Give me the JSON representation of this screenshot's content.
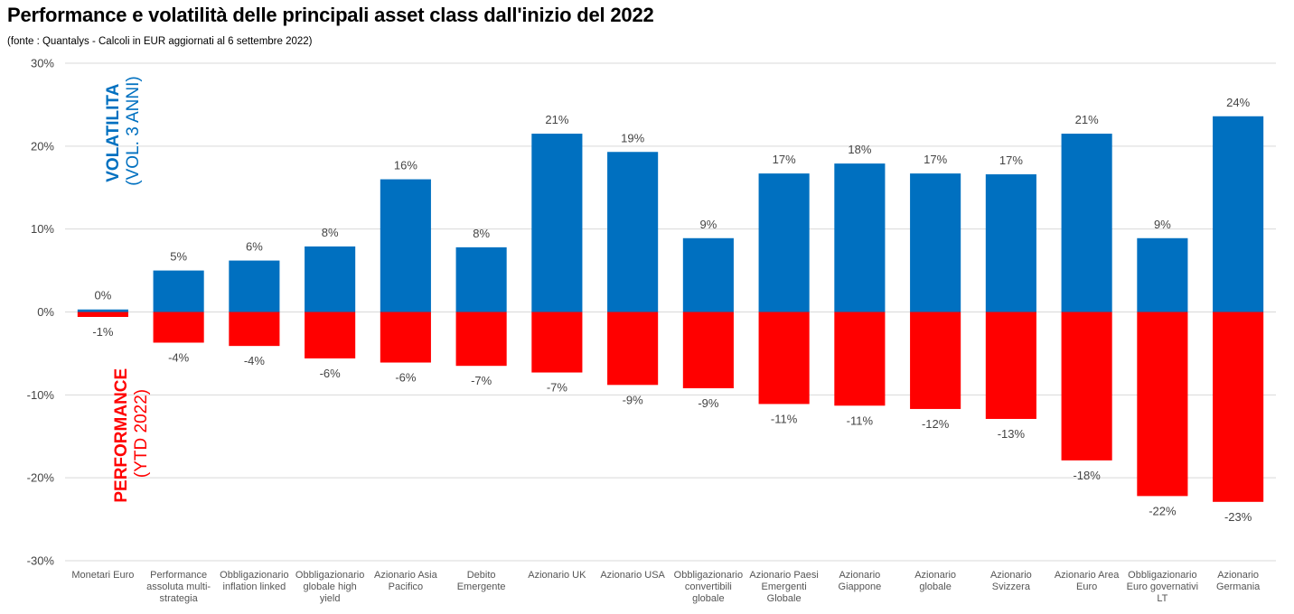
{
  "header": {
    "title": "Performance e volatilità delle principali asset class dall'inizio del 2022",
    "subtitle": "(fonte : Quantalys - Calcoli in EUR aggiornati al 6 settembre 2022)"
  },
  "legend": {
    "volatility_strong": "VOLATILITA",
    "volatility_light": "(VOL. 3 ANNI)",
    "performance_strong": "PERFORMANCE",
    "performance_light": "(YTD 2022)"
  },
  "colors": {
    "volatility": "#0070C0",
    "performance": "#FF0000",
    "grid": "#D9D9D9"
  },
  "chart_data": {
    "type": "bar",
    "categories": [
      [
        "Monetari Euro"
      ],
      [
        "Performance",
        "assoluta multi-",
        "strategia"
      ],
      [
        "Obbligazionario",
        "inflation linked"
      ],
      [
        "Obbligazionario",
        "globale high",
        "yield"
      ],
      [
        "Azionario Asia",
        "Pacifico"
      ],
      [
        "Debito",
        "Emergente"
      ],
      [
        "Azionario UK"
      ],
      [
        "Azionario USA"
      ],
      [
        "Obbligazionario",
        "convertibili",
        "globale"
      ],
      [
        "Azionario Paesi",
        "Emergenti",
        "Globale"
      ],
      [
        "Azionario",
        "Giappone"
      ],
      [
        "Azionario",
        "globale"
      ],
      [
        "Azionario",
        "Svizzera"
      ],
      [
        "Azionario Area",
        "Euro"
      ],
      [
        "Obbligazionario",
        "Euro governativi",
        "LT"
      ],
      [
        "Azionario",
        "Germania"
      ]
    ],
    "series": [
      {
        "name": "VOLATILITA (VOL. 3 ANNI)",
        "color": "#0070C0",
        "values": [
          0.3,
          5.0,
          6.2,
          7.9,
          16.0,
          7.8,
          21.5,
          19.3,
          8.9,
          16.7,
          17.9,
          16.7,
          16.6,
          21.5,
          8.9,
          23.6
        ],
        "labels": [
          "0%",
          "5%",
          "6%",
          "8%",
          "16%",
          "8%",
          "21%",
          "19%",
          "9%",
          "17%",
          "18%",
          "17%",
          "17%",
          "21%",
          "9%",
          "24%"
        ]
      },
      {
        "name": "PERFORMANCE (YTD 2022)",
        "color": "#FF0000",
        "values": [
          -0.6,
          -3.7,
          -4.1,
          -5.6,
          -6.1,
          -6.5,
          -7.3,
          -8.8,
          -9.2,
          -11.1,
          -11.3,
          -11.7,
          -12.9,
          -17.9,
          -22.2,
          -22.9
        ],
        "labels": [
          "-1%",
          "-4%",
          "-4%",
          "-6%",
          "-6%",
          "-7%",
          "-7%",
          "-9%",
          "-9%",
          "-11%",
          "-11%",
          "-12%",
          "-13%",
          "-18%",
          "-22%",
          "-23%"
        ]
      }
    ],
    "y_ticks": [
      "30%",
      "20%",
      "10%",
      "0%",
      "-10%",
      "-20%",
      "-30%"
    ],
    "ylim": [
      -30,
      30
    ],
    "grid": true
  }
}
